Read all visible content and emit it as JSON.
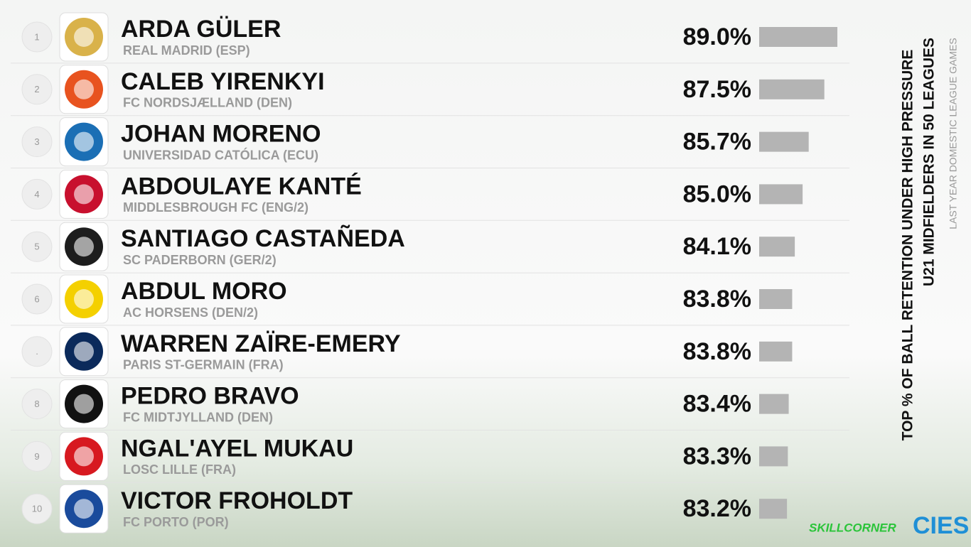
{
  "chart_data": {
    "type": "bar",
    "orientation": "horizontal",
    "title": "TOP % OF BALL RETENTION UNDER HIGH PRESSURE",
    "subtitle": "U21 MIDFIELDERS IN 50 LEAGUES",
    "caption": "LAST YEAR DOMESTIC LEAGUE GAMES",
    "ranks": [
      "1",
      "2",
      "3",
      "4",
      "5",
      "6",
      ".",
      "8",
      "9",
      "10"
    ],
    "categories": [
      "ARDA GÜLER",
      "CALEB YIRENKYI",
      "JOHAN MORENO",
      "ABDOULAYE KANTÉ",
      "SANTIAGO CASTAÑEDA",
      "ABDUL MORO",
      "WARREN ZAÏRE-EMERY",
      "PEDRO BRAVO",
      "NGAL'AYEL MUKAU",
      "VICTOR FROHOLDT"
    ],
    "clubs": [
      "REAL MADRID (ESP)",
      "FC NORDSJÆLLAND (DEN)",
      "UNIVERSIDAD CATÓLICA (ECU)",
      "MIDDLESBROUGH FC (ENG/2)",
      "SC PADERBORN (GER/2)",
      "AC HORSENS (DEN/2)",
      "PARIS ST-GERMAIN (FRA)",
      "FC MIDTJYLLAND (DEN)",
      "LOSC LILLE (FRA)",
      "FC PORTO (POR)"
    ],
    "values": [
      89.0,
      87.5,
      85.7,
      85.0,
      84.1,
      83.8,
      83.8,
      83.4,
      83.3,
      83.2
    ],
    "value_labels": [
      "89.0%",
      "87.5%",
      "85.7%",
      "85.0%",
      "84.1%",
      "83.8%",
      "83.8%",
      "83.4%",
      "83.3%",
      "83.2%"
    ],
    "color": "#b4b4b4",
    "xlim": [
      80,
      89
    ]
  },
  "logos": {
    "skillcorner": "SKILLCORNER",
    "cies": "CIES"
  }
}
